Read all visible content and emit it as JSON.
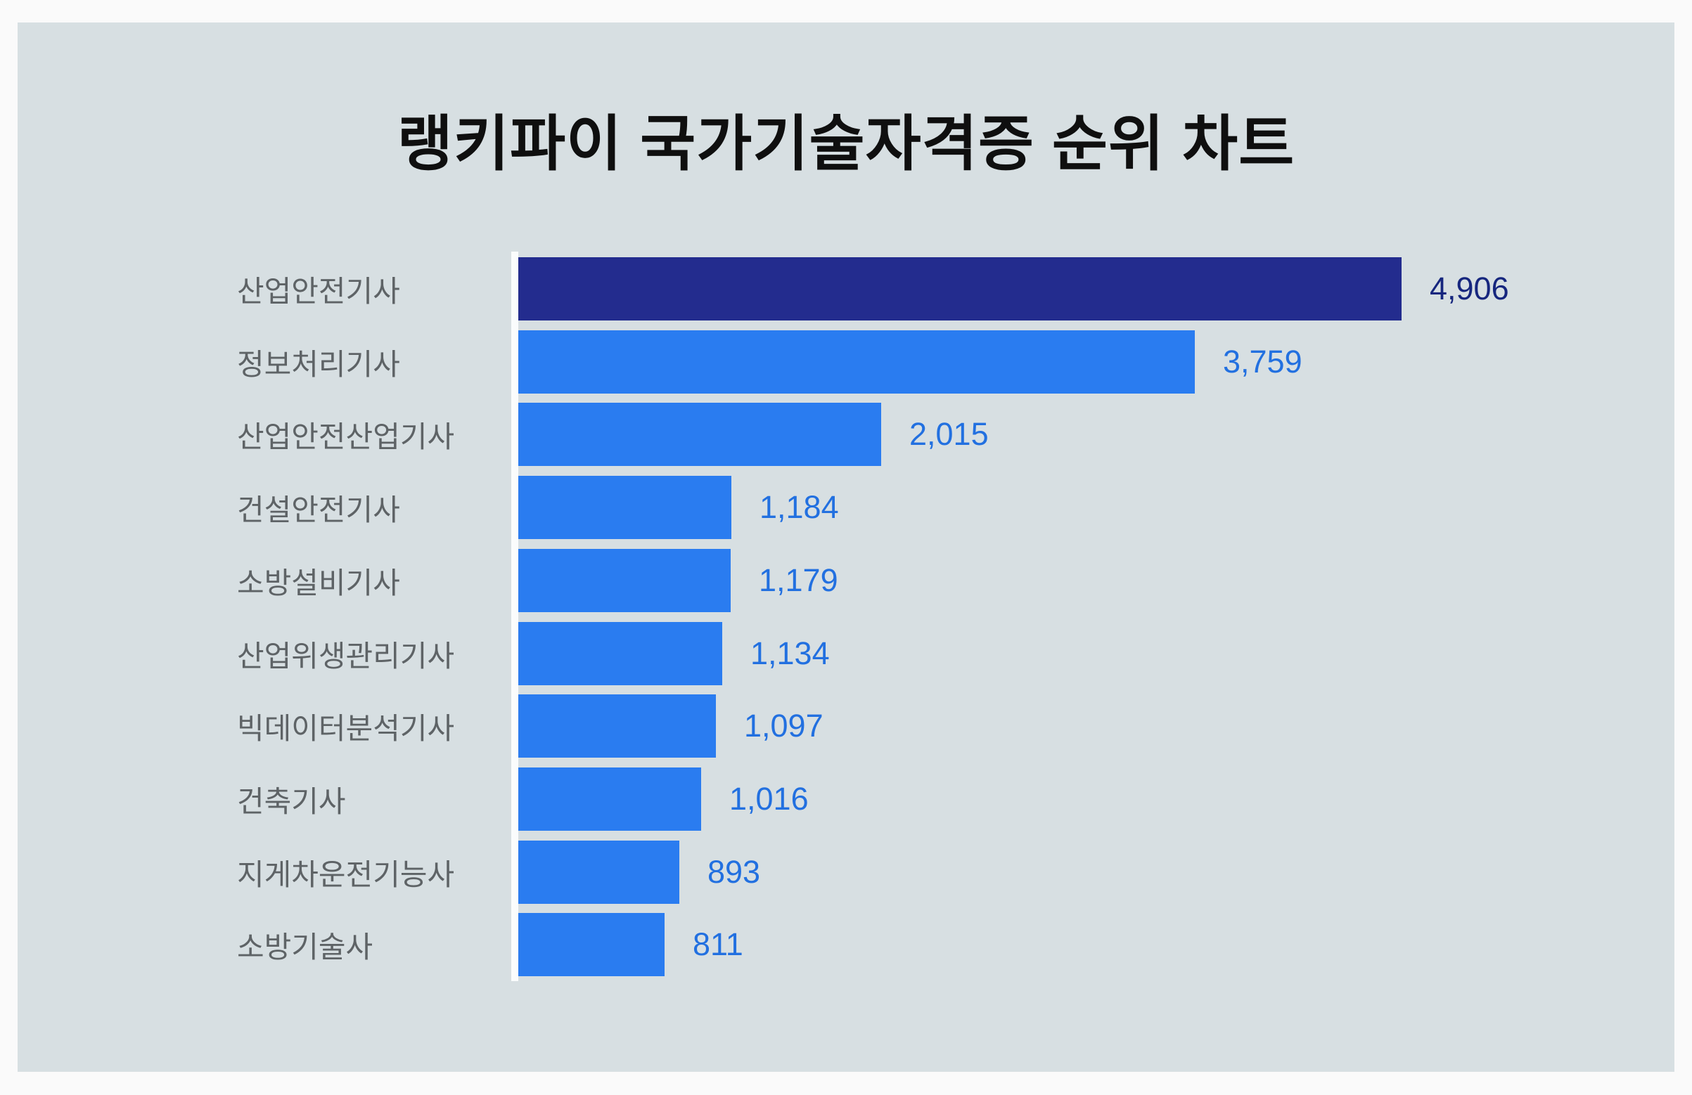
{
  "title": "랭키파이 국가기술자격증 순위 차트",
  "chart_data": {
    "type": "bar",
    "orientation": "horizontal",
    "title": "랭키파이 국가기술자격증 순위 차트",
    "categories": [
      "산업안전기사",
      "정보처리기사",
      "산업안전산업기사",
      "건설안전기사",
      "소방설비기사",
      "산업위생관리기사",
      "빅데이터분석기사",
      "건축기사",
      "지게차운전기능사",
      "소방기술사"
    ],
    "values": [
      4906,
      3759,
      2015,
      1184,
      1179,
      1134,
      1097,
      1016,
      893,
      811
    ],
    "value_labels": [
      "4,906",
      "3,759",
      "2,015",
      "1,184",
      "1,179",
      "1,134",
      "1,097",
      "1,016",
      "893",
      "811"
    ],
    "xlim": [
      0,
      4906
    ],
    "highlight_index": 0,
    "grid": false,
    "legend": false,
    "colors": {
      "bar_primary": "#2A7CF0",
      "bar_highlight": "#232C8E",
      "value_text": "#2270E0",
      "value_text_highlight": "#16267E",
      "label_text": "#5E6366",
      "panel_bg": "#D7DFE2",
      "page_bg": "#FAFAFA",
      "axis_line": "#FAFCFC",
      "title_text": "#0F0F0F"
    }
  }
}
